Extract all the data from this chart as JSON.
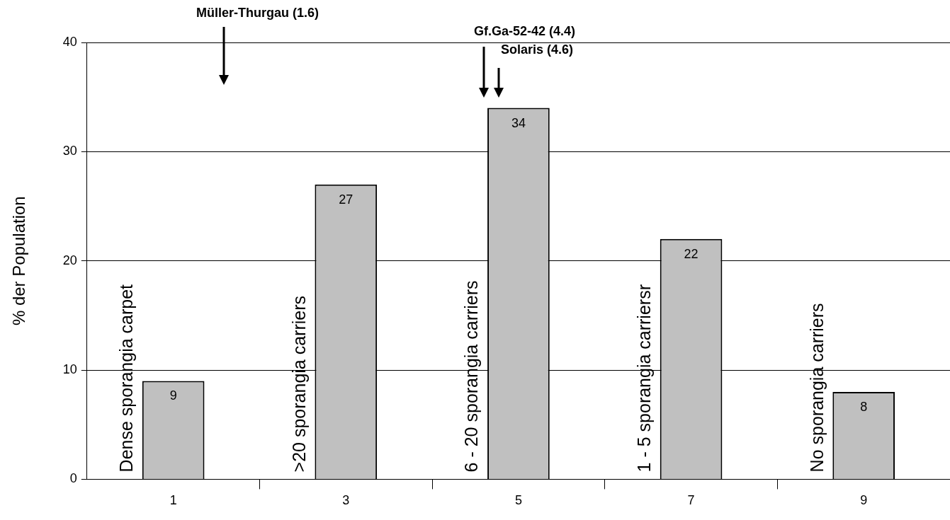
{
  "chart_data": {
    "type": "bar",
    "ylabel": "% der Population",
    "x": [
      1,
      3,
      5,
      7,
      9
    ],
    "values": [
      9,
      27,
      34,
      22,
      8
    ],
    "color": "#c0c0c0",
    "data_labels": true,
    "xlim": [
      0,
      10
    ],
    "xticks": [
      1,
      {
        "value": 2,
        "label": null
      },
      3,
      {
        "value": 4,
        "label": null
      },
      5,
      {
        "value": 6,
        "label": null
      },
      7,
      {
        "value": 8,
        "label": null
      },
      9
    ],
    "ylim": [
      0,
      40
    ],
    "yticks": [
      0,
      10,
      20,
      30,
      40
    ],
    "grid": "y",
    "legend": false,
    "annotations": [
      {
        "text": "Dense sporangia carpet",
        "x": 1,
        "y": 0
      },
      {
        "text": ">20 sporangia carriers",
        "x": 3,
        "y": 0
      },
      {
        "text": "6 - 20 sporangia carriers",
        "x": 5,
        "y": 0
      },
      {
        "text": "1 - 5 sporangia carriersr",
        "x": 7,
        "y": 0
      },
      {
        "text": "No sporangia carriers",
        "x": 9,
        "y": 0
      },
      "Müller-Thurgau (1.6)",
      "Gf.Ga-52-42 (4.4)",
      "Solaris (4.6)"
    ]
  }
}
